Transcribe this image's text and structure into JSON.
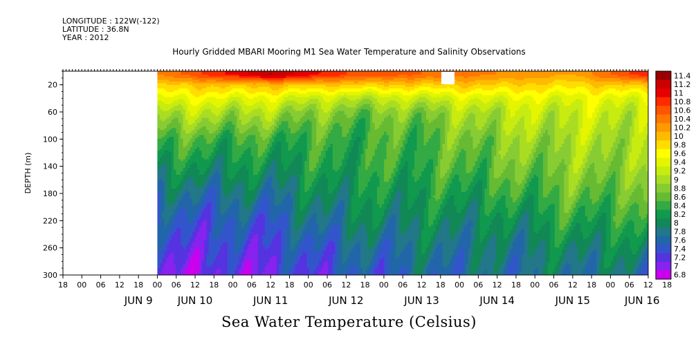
{
  "header": {
    "longitude": "LONGITUDE : 122W(-122)",
    "latitude": "LATITUDE : 36.8N",
    "year": "YEAR : 2012"
  },
  "title": "Hourly Gridded MBARI Mooring M1 Sea Water Temperature and Salinity Observations",
  "bottom_title": "Sea Water Temperature (Celsius)",
  "chart_data": {
    "type": "heatmap",
    "ylabel": "DEPTH (m)",
    "ylim": [
      0,
      300
    ],
    "y_inverted": true,
    "y_ticks": [
      "20",
      "60",
      "100",
      "140",
      "180",
      "220",
      "260",
      "300"
    ],
    "x_hour_ticks": [
      "18",
      "00",
      "06",
      "12",
      "18",
      "00",
      "06",
      "12",
      "18",
      "00",
      "06",
      "12",
      "18",
      "00",
      "06",
      "12",
      "18",
      "00",
      "06",
      "12",
      "18",
      "00",
      "06",
      "12",
      "18",
      "00",
      "06",
      "12",
      "18",
      "00",
      "06",
      "12",
      "18"
    ],
    "x_day_labels": [
      "JUN  9",
      "JUN 10",
      "JUN 11",
      "JUN 12",
      "JUN 13",
      "JUN 14",
      "JUN 15",
      "JUN 16"
    ],
    "x_day_positions_days": [
      1,
      1.75,
      2.75,
      3.75,
      4.75,
      5.75,
      6.75,
      7.67
    ],
    "data_start_days": 1.25,
    "colorbar_levels": [
      "11.4",
      "11.2",
      "11",
      "10.8",
      "10.6",
      "10.4",
      "10.2",
      "10",
      "9.8",
      "9.6",
      "9.4",
      "9.2",
      "9",
      "8.8",
      "8.6",
      "8.4",
      "8.2",
      "8",
      "7.8",
      "7.6",
      "7.4",
      "7.2",
      "7",
      "6.8"
    ],
    "colorbar_colors": [
      "#990000",
      "#cc0000",
      "#e60000",
      "#ff2a00",
      "#ff5500",
      "#ff7700",
      "#ff9900",
      "#ffbb00",
      "#ffdd00",
      "#ffff00",
      "#e5f500",
      "#c8ec10",
      "#aadd22",
      "#88cc33",
      "#66bb33",
      "#33aa44",
      "#11994e",
      "#118855",
      "#227788",
      "#2266aa",
      "#3355cc",
      "#5533e0",
      "#8822ee",
      "#cc00ee"
    ],
    "profile": {
      "depth_m": [
        5,
        20,
        40,
        60,
        80,
        100,
        140,
        180,
        220,
        260,
        300
      ],
      "temp_by_day": {
        "JUN 9/10": [
          10.2,
          9.8,
          9.4,
          9.0,
          8.7,
          8.4,
          8.0,
          7.6,
          7.3,
          7.1,
          6.9
        ],
        "JUN 11": [
          11.2,
          9.9,
          9.3,
          8.9,
          8.6,
          8.3,
          8.0,
          7.7,
          7.4,
          7.2,
          7.0
        ],
        "JUN 12": [
          10.6,
          9.8,
          9.0,
          8.6,
          8.4,
          8.3,
          8.2,
          8.0,
          7.8,
          7.5,
          7.3
        ],
        "JUN 13": [
          10.4,
          9.8,
          9.1,
          8.7,
          8.5,
          8.4,
          8.3,
          8.1,
          7.9,
          7.7,
          7.5
        ],
        "JUN 14": [
          10.2,
          9.8,
          9.3,
          9.0,
          8.9,
          8.7,
          8.5,
          8.2,
          7.9,
          7.7,
          7.6
        ],
        "JUN 15": [
          10.0,
          9.7,
          9.3,
          9.1,
          9.0,
          8.9,
          8.7,
          8.5,
          8.2,
          7.9,
          7.7
        ],
        "JUN 16": [
          10.8,
          9.9,
          9.3,
          9.1,
          9.0,
          8.9,
          8.8,
          8.5,
          8.2,
          7.9,
          7.6
        ]
      }
    }
  }
}
